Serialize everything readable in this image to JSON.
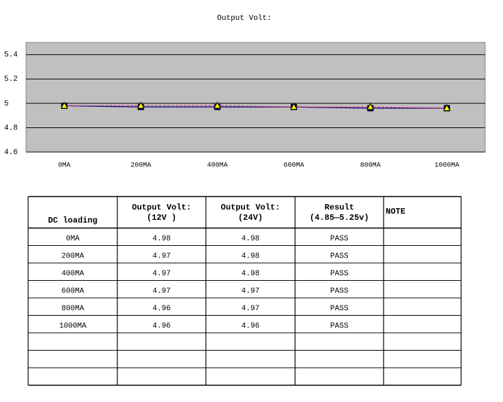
{
  "chart_data": {
    "type": "line",
    "title": "Output Volt:",
    "categories": [
      "0MA",
      "200MA",
      "400MA",
      "600MA",
      "800MA",
      "1000MA"
    ],
    "series": [
      {
        "color": "#000080",
        "marker": "square",
        "marker_color": "#000080",
        "dashed": false,
        "values": [
          4.98,
          4.97,
          4.97,
          4.97,
          4.96,
          4.96
        ]
      },
      {
        "color": "#d0306a",
        "marker": "triangle",
        "marker_color": "#ffff00",
        "dashed": true,
        "values": [
          4.98,
          4.98,
          4.98,
          4.97,
          4.97,
          4.96
        ]
      }
    ],
    "ylim": [
      4.6,
      5.5
    ],
    "yticks": [
      4.6,
      4.8,
      5,
      5.2,
      5.4
    ],
    "grid": true,
    "background": "#c0c0c0"
  },
  "table": {
    "header": [
      [
        "DC loading"
      ],
      [
        "Output Volt:",
        "(12V )"
      ],
      [
        "Output Volt:",
        "(24V)"
      ],
      [
        "Result",
        "(4.85—5.25v)"
      ],
      [
        "NOTE"
      ]
    ],
    "rows": [
      [
        "0MA",
        4.98,
        4.98,
        "PASS"
      ],
      [
        "200MA",
        4.97,
        4.98,
        "PASS"
      ],
      [
        "400MA",
        4.97,
        4.98,
        "PASS"
      ],
      [
        "600MA",
        4.97,
        4.97,
        "PASS"
      ],
      [
        "800MA",
        4.96,
        4.97,
        "PASS"
      ],
      [
        "1000MA",
        4.96,
        4.96,
        "PASS"
      ]
    ]
  }
}
